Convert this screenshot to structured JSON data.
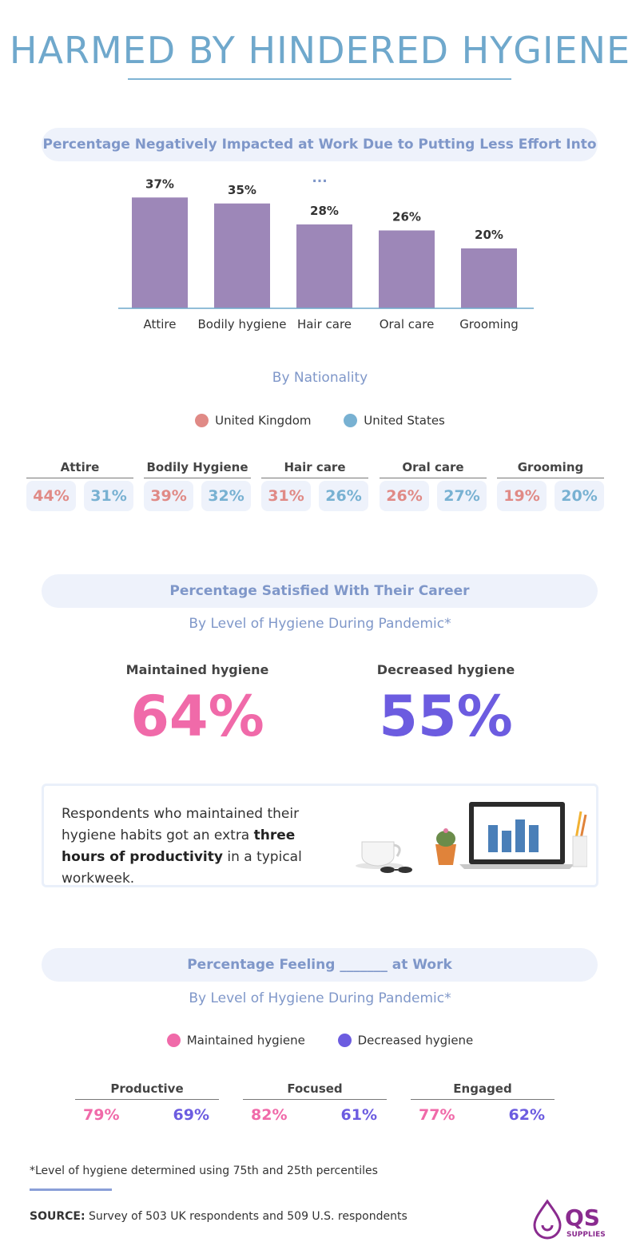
{
  "title": "HARMED BY HINDERED HYGIENE",
  "section1": {
    "heading": "Percentage Negatively Impacted at Work Due to Putting Less Effort Into ...",
    "nationality_subheading": "By Nationality",
    "legend": [
      {
        "label": "United Kingdom",
        "color": "#e08a86"
      },
      {
        "label": "United States",
        "color": "#78b1d2"
      }
    ],
    "nationality": [
      {
        "label": "Attire",
        "uk": "44%",
        "us": "31%"
      },
      {
        "label": "Bodily Hygiene",
        "uk": "39%",
        "us": "32%"
      },
      {
        "label": "Hair care",
        "uk": "31%",
        "us": "26%"
      },
      {
        "label": "Oral care",
        "uk": "26%",
        "us": "27%"
      },
      {
        "label": "Grooming",
        "uk": "19%",
        "us": "20%"
      }
    ]
  },
  "chart_data": {
    "type": "bar",
    "categories": [
      "Attire",
      "Bodily hygiene",
      "Hair care",
      "Oral care",
      "Grooming"
    ],
    "values": [
      37,
      35,
      28,
      26,
      20
    ],
    "value_labels": [
      "37%",
      "35%",
      "28%",
      "26%",
      "20%"
    ],
    "title": "",
    "xlabel": "",
    "ylabel": "",
    "ylim": [
      0,
      40
    ],
    "grid": false,
    "bar_color": "#9d87b8",
    "axis_color": "#6fa8cc"
  },
  "section2": {
    "heading": "Percentage Satisfied With Their Career",
    "subheading": "By Level of Hygiene During Pandemic*",
    "maintained_label": "Maintained hygiene",
    "maintained_value": "64%",
    "decreased_label": "Decreased hygiene",
    "decreased_value": "55%",
    "maintained_color": "#f06aa9",
    "decreased_color": "#6c5ce0",
    "callout_pre": "Respondents who maintained their hygiene habits got an extra ",
    "callout_bold": "three hours of productivity",
    "callout_post": " in a typical workweek."
  },
  "section3": {
    "heading": "Percentage Feeling _______ at Work",
    "subheading": "By Level of Hygiene During Pandemic*",
    "legend": [
      {
        "label": "Maintained hygiene",
        "color": "#f06aa9"
      },
      {
        "label": "Decreased hygiene",
        "color": "#6c5ce0"
      }
    ],
    "groups": [
      {
        "label": "Productive",
        "maintained": "79%",
        "decreased": "69%"
      },
      {
        "label": "Focused",
        "maintained": "82%",
        "decreased": "61%"
      },
      {
        "label": "Engaged",
        "maintained": "77%",
        "decreased": "62%"
      }
    ]
  },
  "footnote": "*Level of hygiene determined using 75th and 25th percentiles",
  "source_label": "SOURCE:",
  "source_text": " Survey of 503 UK respondents and 509 U.S. respondents",
  "logo": {
    "text": "QS",
    "subtext": "SUPPLIES",
    "icon": "droplet-icon"
  }
}
